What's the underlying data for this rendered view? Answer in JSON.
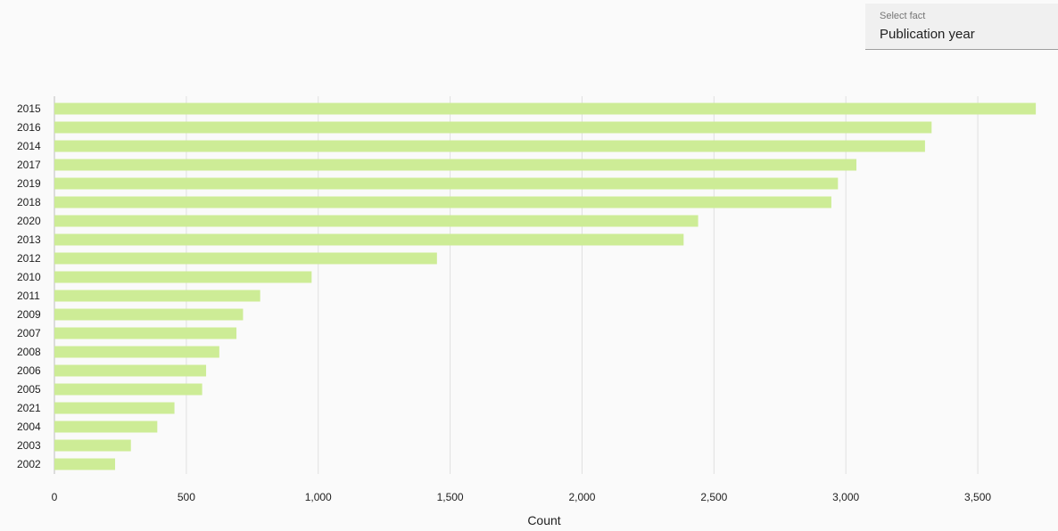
{
  "selector": {
    "label": "Select fact",
    "value": "Publication year"
  },
  "colors": {
    "bar": "#cdec96",
    "grid": "#e0e0e0",
    "text": "#212121"
  },
  "chart_data": {
    "type": "bar",
    "orientation": "horizontal",
    "title": "",
    "xlabel": "Count",
    "ylabel": "",
    "xlim": [
      0,
      3750
    ],
    "xticks": [
      0,
      500,
      1000,
      1500,
      2000,
      2500,
      3000,
      3500
    ],
    "xtick_labels": [
      "0",
      "500",
      "1,000",
      "1,500",
      "2,000",
      "2,500",
      "3,000",
      "3,500"
    ],
    "grid": true,
    "categories": [
      "2015",
      "2016",
      "2014",
      "2017",
      "2019",
      "2018",
      "2020",
      "2013",
      "2012",
      "2010",
      "2011",
      "2009",
      "2007",
      "2008",
      "2006",
      "2005",
      "2021",
      "2004",
      "2003",
      "2002"
    ],
    "values": [
      3720,
      3325,
      3300,
      3040,
      2970,
      2945,
      2440,
      2385,
      1450,
      975,
      780,
      715,
      690,
      625,
      575,
      560,
      455,
      390,
      290,
      230
    ]
  }
}
